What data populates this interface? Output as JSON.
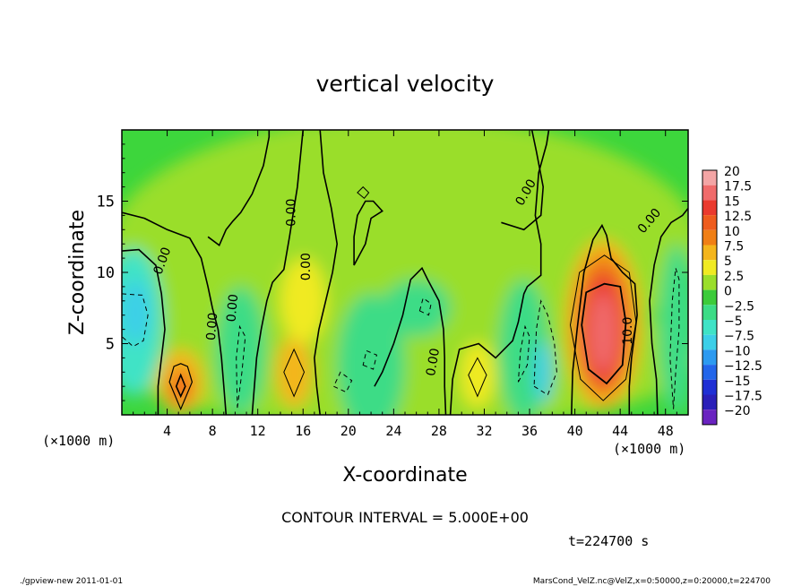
{
  "chart_data": {
    "type": "heatmap",
    "title": "vertical velocity",
    "xlabel": "X-coordinate",
    "ylabel": "Z-coordinate",
    "x_unit": "(×1000 m)",
    "y_unit": "(×1000 m)",
    "x_ticks": [
      "4",
      "8",
      "12",
      "16",
      "20",
      "24",
      "28",
      "32",
      "36",
      "40",
      "44",
      "48"
    ],
    "y_ticks": [
      "5",
      "10",
      "15"
    ],
    "xlim": [
      0,
      50
    ],
    "ylim": [
      0,
      20
    ],
    "contour_interval_text": "CONTOUR INTERVAL = 5.000E+00",
    "time_text": "t=224700 s",
    "contour_labels": [
      "0.00",
      "0.00",
      "0.00",
      "0.00",
      "0.00",
      "0.00",
      "0.00",
      "0.00",
      "10.0"
    ],
    "colorbar": {
      "labels": [
        "20",
        "17.5",
        "15",
        "12.5",
        "10",
        "7.5",
        "5",
        "2.5",
        "0",
        "−2.5",
        "−5",
        "−7.5",
        "−10",
        "−12.5",
        "−15",
        "−17.5",
        "−20"
      ],
      "colors": [
        "#f3a5a5",
        "#f06b6b",
        "#ea3a2e",
        "#ee5c1e",
        "#f07f15",
        "#f4b51c",
        "#f0ea23",
        "#9ade2b",
        "#3ccb3a",
        "#3cdc86",
        "#3fe3c6",
        "#3ccfe8",
        "#2d9af0",
        "#2366ea",
        "#1f2fd4",
        "#2a1fb8",
        "#6a23c0"
      ]
    },
    "features": [
      {
        "x": 42.5,
        "z": 6.0,
        "value": 16,
        "kind": "updraft"
      },
      {
        "x": 5.2,
        "z": 2.0,
        "value": 11,
        "kind": "updraft"
      },
      {
        "x": 15.2,
        "z": 3.0,
        "value": 7,
        "kind": "updraft"
      },
      {
        "x": 31.4,
        "z": 2.8,
        "value": 6,
        "kind": "updraft"
      },
      {
        "x": 1.0,
        "z": 7.0,
        "value": -10,
        "kind": "downdraft"
      },
      {
        "x": 37.2,
        "z": 3.0,
        "value": -9,
        "kind": "downdraft"
      }
    ]
  },
  "footer": {
    "left": "./gpview-new  2011-01-01",
    "right": "MarsCond_VelZ.nc@VelZ,x=0:50000,z=0:20000,t=224700"
  }
}
